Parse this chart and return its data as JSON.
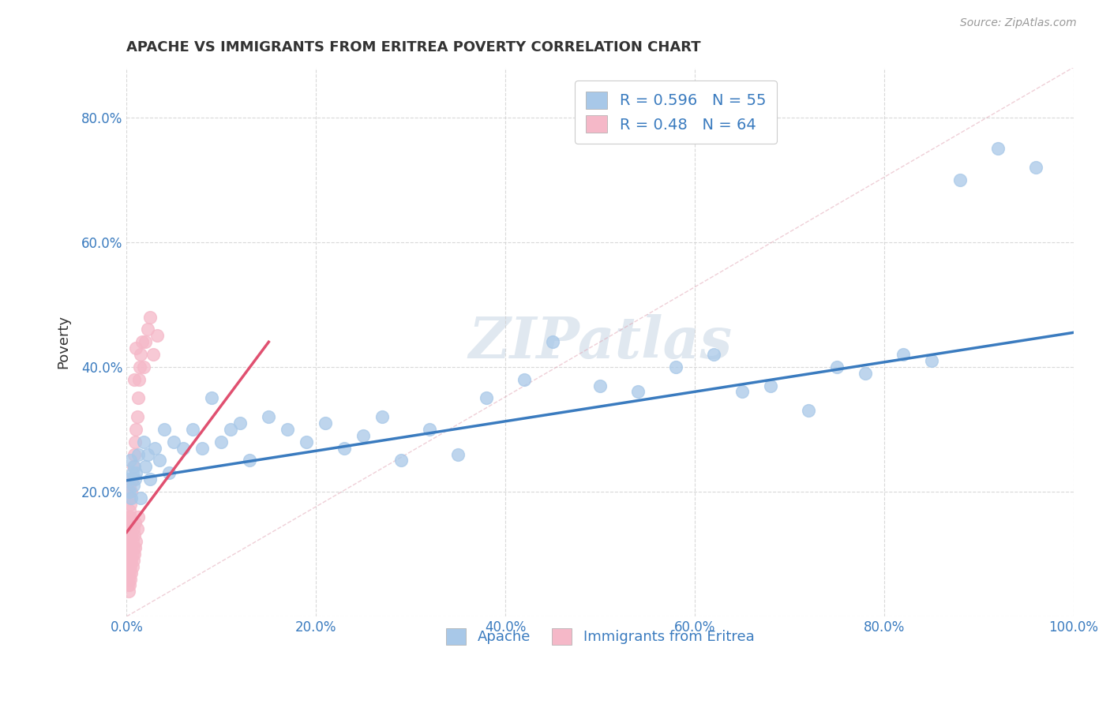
{
  "title": "APACHE VS IMMIGRANTS FROM ERITREA POVERTY CORRELATION CHART",
  "source_text": "Source: ZipAtlas.com",
  "ylabel": "Poverty",
  "xlim": [
    0,
    1.0
  ],
  "ylim": [
    0,
    0.88
  ],
  "xticks": [
    0,
    0.2,
    0.4,
    0.6,
    0.8,
    1.0
  ],
  "xticklabels": [
    "0.0%",
    "20.0%",
    "40.0%",
    "60.0%",
    "80.0%",
    "100.0%"
  ],
  "yticks": [
    0,
    0.2,
    0.4,
    0.6,
    0.8
  ],
  "yticklabels": [
    "",
    "20.0%",
    "40.0%",
    "60.0%",
    "80.0%"
  ],
  "apache_R": 0.596,
  "apache_N": 55,
  "eritrea_R": 0.48,
  "eritrea_N": 64,
  "apache_color": "#a8c8e8",
  "apache_line_color": "#3a7bbf",
  "eritrea_color": "#f5b8c8",
  "eritrea_line_color": "#e05070",
  "apache_scatter_x": [
    0.002,
    0.003,
    0.004,
    0.005,
    0.006,
    0.007,
    0.008,
    0.009,
    0.01,
    0.012,
    0.015,
    0.018,
    0.02,
    0.022,
    0.025,
    0.03,
    0.035,
    0.04,
    0.045,
    0.05,
    0.06,
    0.07,
    0.08,
    0.09,
    0.1,
    0.11,
    0.12,
    0.13,
    0.15,
    0.17,
    0.19,
    0.21,
    0.23,
    0.25,
    0.27,
    0.29,
    0.32,
    0.35,
    0.38,
    0.42,
    0.45,
    0.5,
    0.54,
    0.58,
    0.62,
    0.65,
    0.68,
    0.72,
    0.75,
    0.78,
    0.82,
    0.85,
    0.88,
    0.92,
    0.96
  ],
  "apache_scatter_y": [
    0.22,
    0.2,
    0.25,
    0.19,
    0.23,
    0.21,
    0.24,
    0.22,
    0.23,
    0.26,
    0.19,
    0.28,
    0.24,
    0.26,
    0.22,
    0.27,
    0.25,
    0.3,
    0.23,
    0.28,
    0.27,
    0.3,
    0.27,
    0.35,
    0.28,
    0.3,
    0.31,
    0.25,
    0.32,
    0.3,
    0.28,
    0.31,
    0.27,
    0.29,
    0.32,
    0.25,
    0.3,
    0.26,
    0.35,
    0.38,
    0.44,
    0.37,
    0.36,
    0.4,
    0.42,
    0.36,
    0.37,
    0.33,
    0.4,
    0.39,
    0.42,
    0.41,
    0.7,
    0.75,
    0.72
  ],
  "eritrea_scatter_x": [
    0.001,
    0.001,
    0.001,
    0.001,
    0.002,
    0.002,
    0.002,
    0.002,
    0.002,
    0.002,
    0.002,
    0.003,
    0.003,
    0.003,
    0.003,
    0.003,
    0.003,
    0.003,
    0.003,
    0.003,
    0.004,
    0.004,
    0.004,
    0.004,
    0.004,
    0.004,
    0.004,
    0.005,
    0.005,
    0.005,
    0.005,
    0.005,
    0.006,
    0.006,
    0.006,
    0.006,
    0.007,
    0.007,
    0.007,
    0.007,
    0.008,
    0.008,
    0.008,
    0.009,
    0.009,
    0.009,
    0.01,
    0.01,
    0.011,
    0.011,
    0.012,
    0.012,
    0.013,
    0.014,
    0.015,
    0.016,
    0.018,
    0.02,
    0.022,
    0.025,
    0.028,
    0.032,
    0.008,
    0.01
  ],
  "eritrea_scatter_y": [
    0.05,
    0.07,
    0.09,
    0.11,
    0.04,
    0.06,
    0.08,
    0.1,
    0.12,
    0.14,
    0.16,
    0.05,
    0.07,
    0.09,
    0.11,
    0.13,
    0.15,
    0.17,
    0.19,
    0.21,
    0.06,
    0.08,
    0.1,
    0.12,
    0.14,
    0.16,
    0.18,
    0.07,
    0.09,
    0.11,
    0.13,
    0.2,
    0.08,
    0.1,
    0.12,
    0.22,
    0.09,
    0.11,
    0.14,
    0.24,
    0.1,
    0.13,
    0.26,
    0.11,
    0.15,
    0.28,
    0.12,
    0.3,
    0.14,
    0.32,
    0.16,
    0.35,
    0.38,
    0.4,
    0.42,
    0.44,
    0.4,
    0.44,
    0.46,
    0.48,
    0.42,
    0.45,
    0.38,
    0.43
  ],
  "apache_trend_x0": 0.0,
  "apache_trend_y0": 0.218,
  "apache_trend_x1": 1.0,
  "apache_trend_y1": 0.455,
  "eritrea_trend_x0": 0.0,
  "eritrea_trend_y0": 0.135,
  "eritrea_trend_x1": 0.15,
  "eritrea_trend_y1": 0.44,
  "background_color": "#ffffff",
  "grid_color": "#d0d0d0",
  "watermark_text": "ZIPatlas",
  "title_color": "#333333",
  "axis_label_color": "#3a7bbf"
}
